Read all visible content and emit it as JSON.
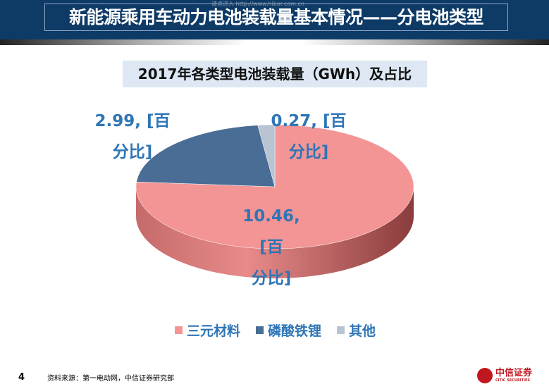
{
  "header": {
    "title": "新能源乘用车动力电池装载量基本情况——分电池类型",
    "watermark": "请点进入 http://www.hibor.com.cn"
  },
  "chart_data": {
    "type": "pie",
    "title": "2017年各类型电池装载量（GWh）及占比",
    "categories": [
      "三元材料",
      "磷酸铁锂",
      "其他"
    ],
    "values": [
      10.46,
      2.99,
      0.27
    ],
    "data_labels": [
      [
        "10.46, [百",
        "分比]"
      ],
      [
        "2.99, [百",
        "分比]"
      ],
      [
        "0.27, [百",
        "分比]"
      ]
    ],
    "colors": [
      "#f49595",
      "#4a6d96",
      "#b8c4d2"
    ],
    "legend_position": "bottom"
  },
  "footer": {
    "page": "4",
    "source": "资料来源：第一电动网，中信证券研究部",
    "logo_cn": "中信证券",
    "logo_en": "CITIC SECURITIES"
  }
}
